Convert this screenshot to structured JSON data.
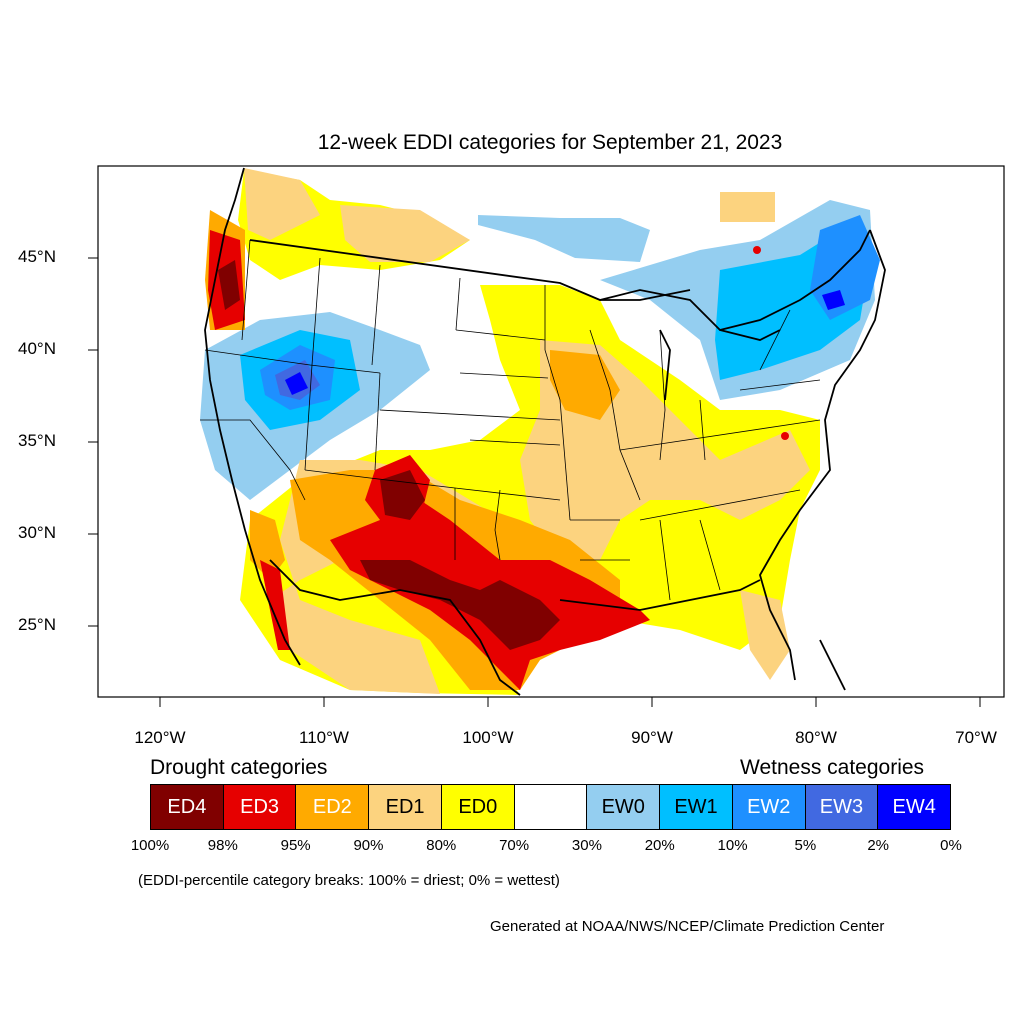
{
  "title": "12-week EDDI categories for September 21, 2023",
  "lon_labels": [
    "120°W",
    "110°W",
    "100°W",
    "90°W",
    "80°W",
    "70°W"
  ],
  "lat_labels": [
    "45°N",
    "40°N",
    "35°N",
    "30°N",
    "25°N"
  ],
  "legend": {
    "drought_heading": "Drought categories",
    "wetness_heading": "Wetness categories",
    "categories": [
      {
        "label": "ED4",
        "color": "#800000",
        "text_color": "#ffffff"
      },
      {
        "label": "ED3",
        "color": "#e60000",
        "text_color": "#ffffff"
      },
      {
        "label": "ED2",
        "color": "#ffaa00",
        "text_color": "#ffffff"
      },
      {
        "label": "ED1",
        "color": "#fcd37f",
        "text_color": "#000000"
      },
      {
        "label": "ED0",
        "color": "#ffff00",
        "text_color": "#000000"
      },
      {
        "label": "",
        "color": "#ffffff",
        "text_color": "#000000"
      },
      {
        "label": "EW0",
        "color": "#94cef0",
        "text_color": "#000000"
      },
      {
        "label": "EW1",
        "color": "#00bfff",
        "text_color": "#000000"
      },
      {
        "label": "EW2",
        "color": "#1e90ff",
        "text_color": "#ffffff"
      },
      {
        "label": "EW3",
        "color": "#4169e1",
        "text_color": "#ffffff"
      },
      {
        "label": "EW4",
        "color": "#0000ff",
        "text_color": "#ffffff"
      }
    ],
    "percent_breaks": [
      "100%",
      "98%",
      "95%",
      "90%",
      "80%",
      "70%",
      "30%",
      "20%",
      "10%",
      "5%",
      "2%",
      "0%"
    ]
  },
  "note": "(EDDI-percentile category breaks: 100% = driest; 0% = wettest)",
  "credit": "Generated at NOAA/NWS/NCEP/Climate Prediction Center"
}
